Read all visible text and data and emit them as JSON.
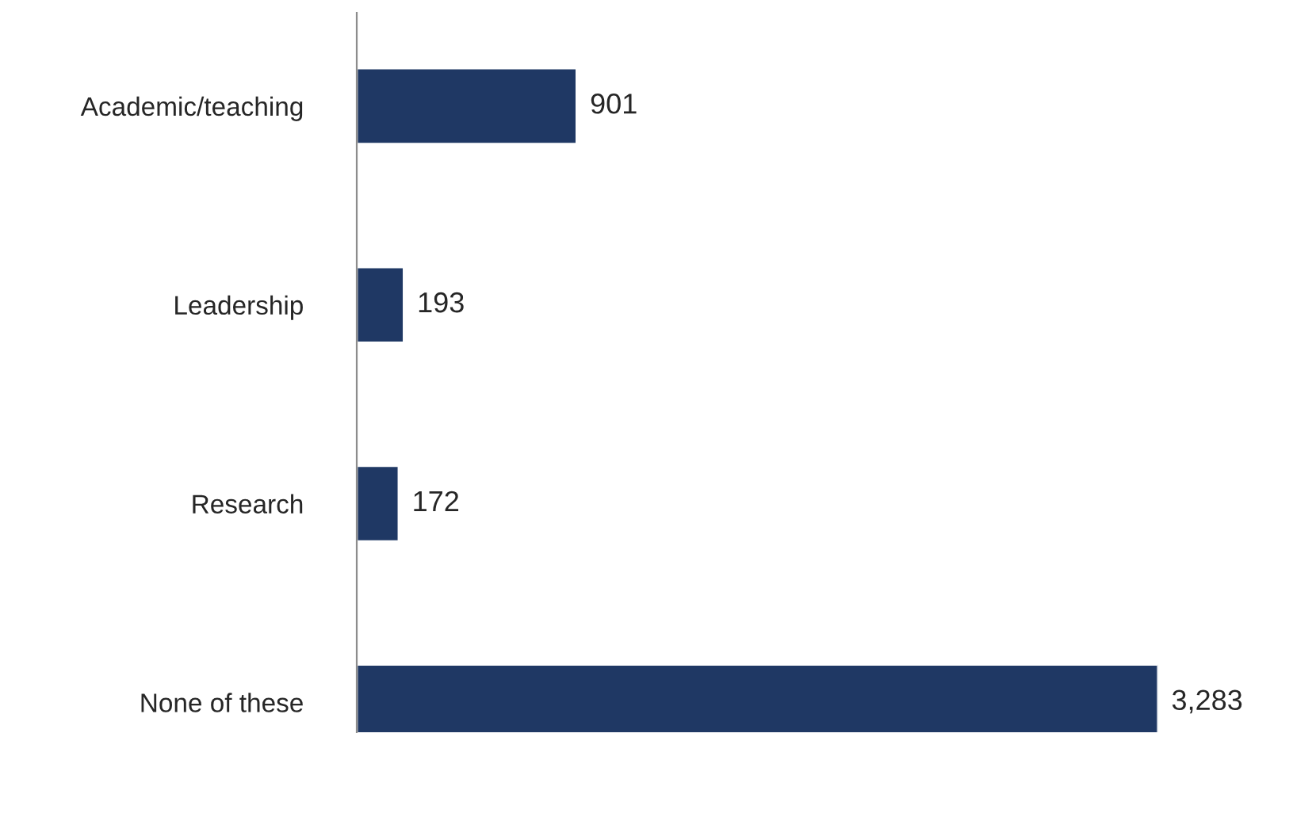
{
  "chart_data": {
    "type": "bar",
    "orientation": "horizontal",
    "categories": [
      "Academic/teaching",
      "Leadership",
      "Research",
      "None of these"
    ],
    "values": [
      901,
      193,
      172,
      3283
    ],
    "color": "#1f3864",
    "value_labels": [
      "901",
      "193",
      "172",
      "3,283"
    ],
    "grid": false,
    "legend": false
  }
}
